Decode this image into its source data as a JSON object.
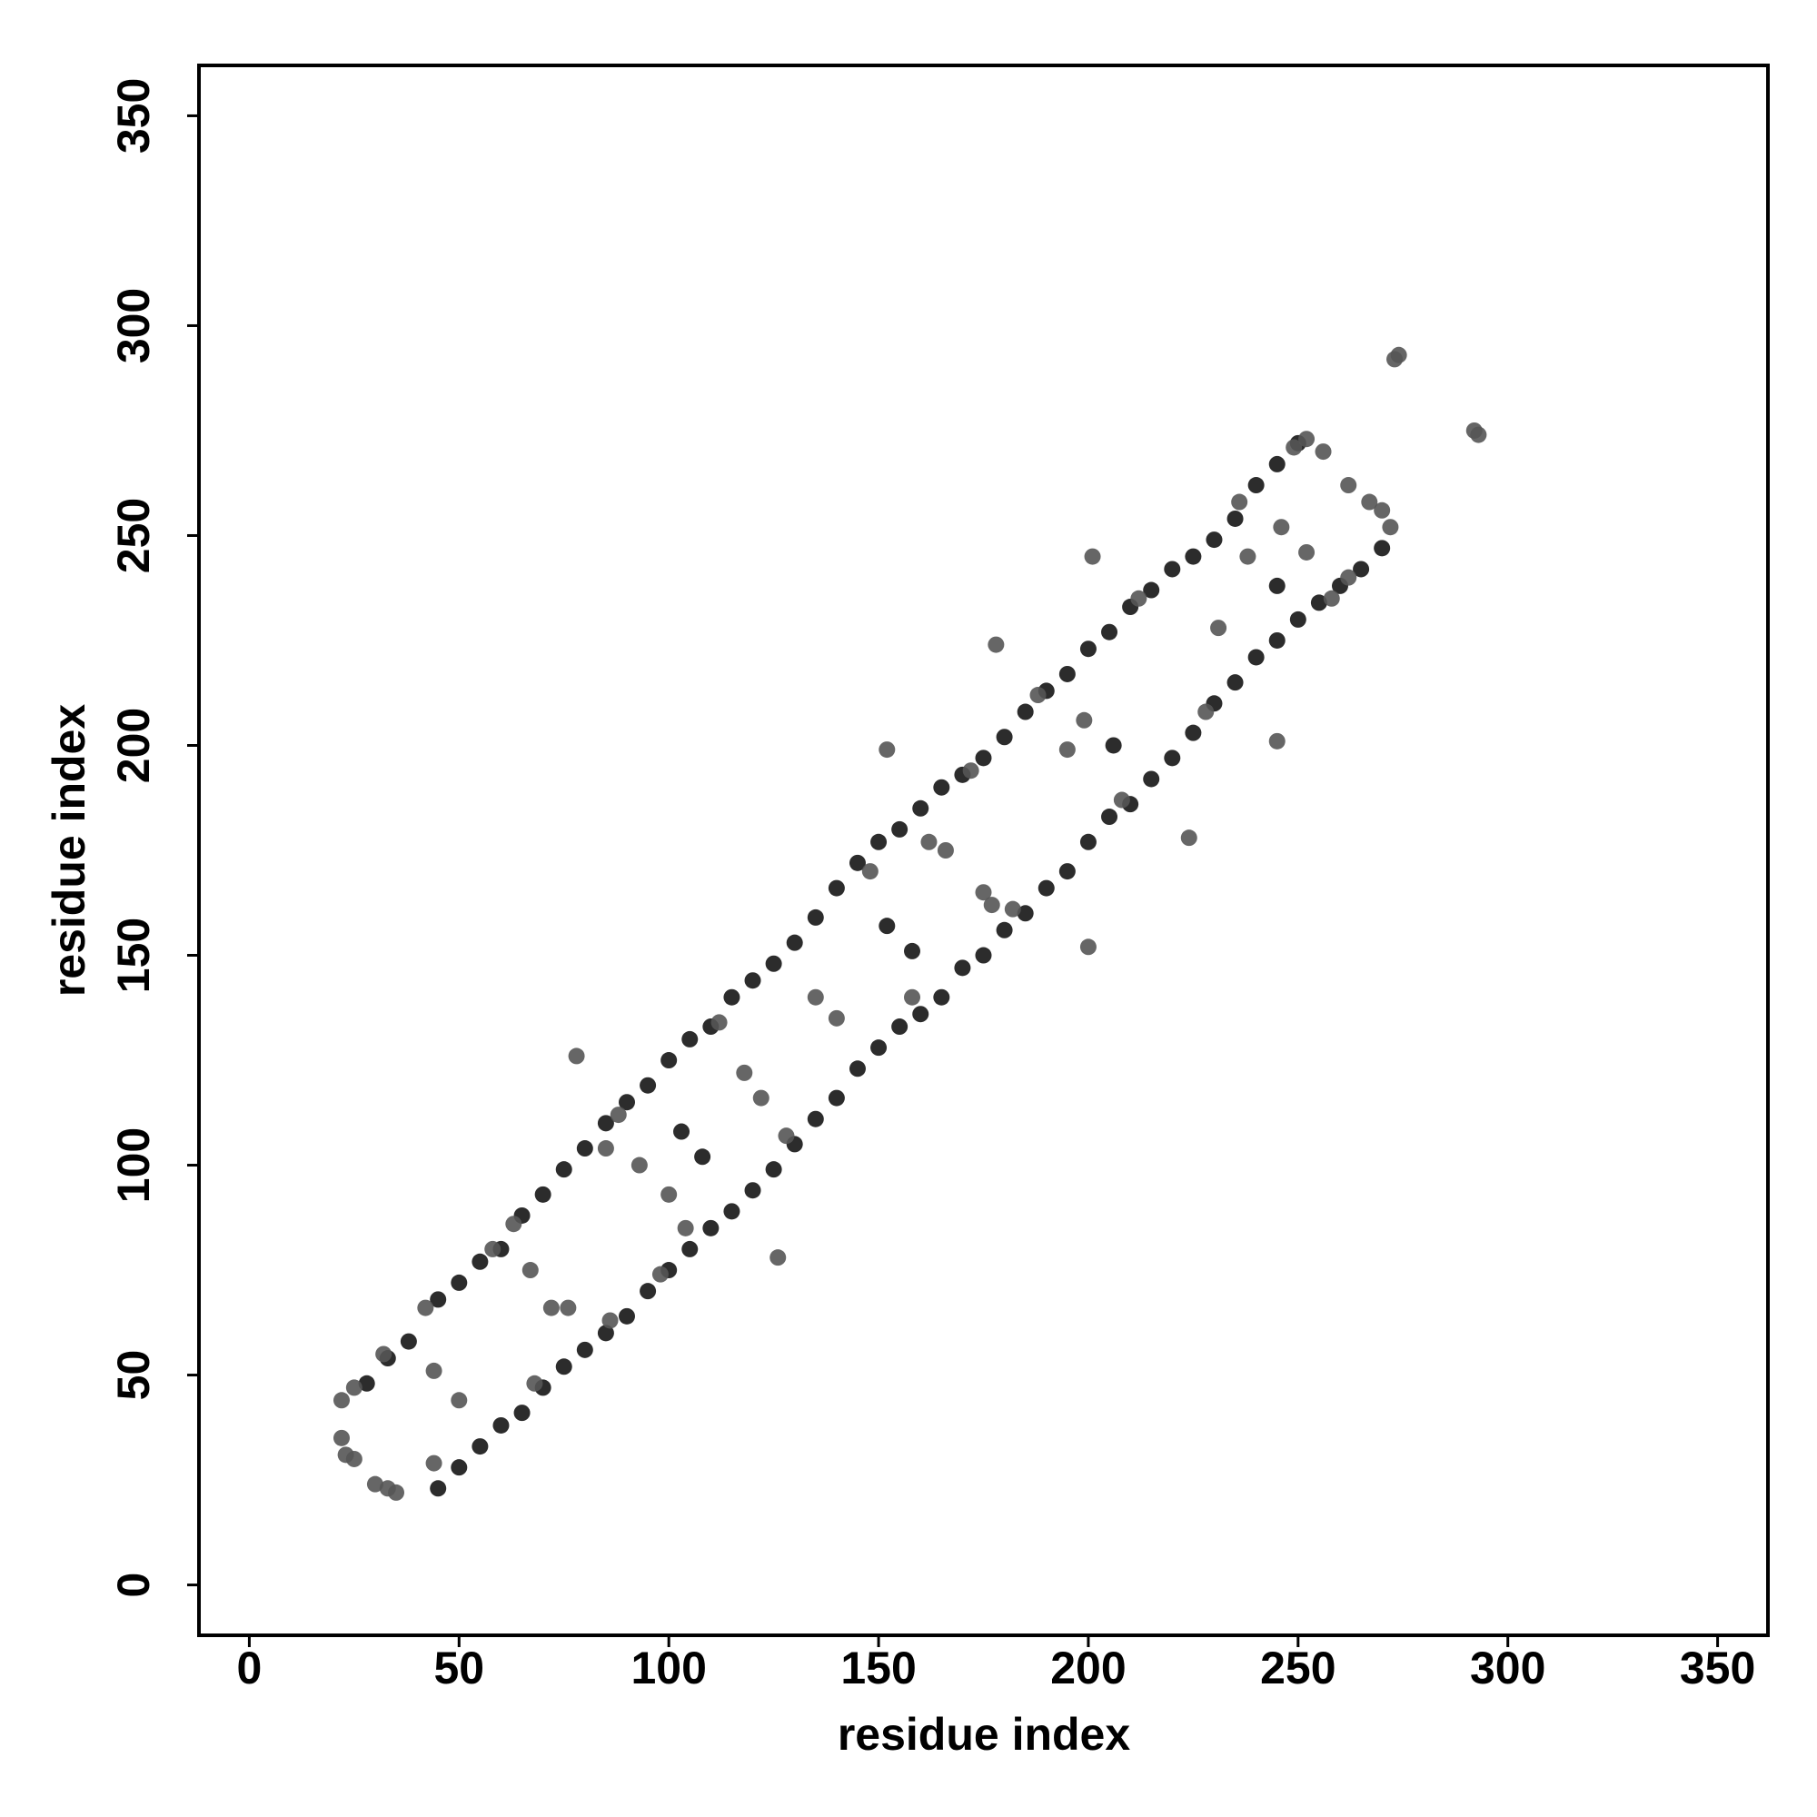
{
  "chart_data": {
    "type": "scatter",
    "xlabel": "residue index",
    "ylabel": "residue index",
    "xlim": [
      -12,
      362
    ],
    "ylim": [
      -12,
      362
    ],
    "xticks": [
      0,
      50,
      100,
      150,
      200,
      250,
      300,
      350
    ],
    "yticks": [
      0,
      50,
      100,
      150,
      200,
      250,
      300,
      350
    ],
    "series": [
      {
        "color": "#151515",
        "x": [
          28,
          33,
          38,
          45,
          50,
          55,
          60,
          65,
          70,
          75,
          80,
          85,
          90,
          95,
          100,
          105,
          110,
          115,
          120,
          125,
          130,
          135,
          140,
          145,
          150,
          155,
          160,
          165,
          170,
          175,
          180,
          185,
          190,
          195,
          200,
          205,
          210,
          215,
          220,
          225,
          230,
          235,
          240,
          245,
          250,
          45,
          50,
          55,
          60,
          65,
          70,
          75,
          80,
          85,
          90,
          95,
          100,
          105,
          110,
          115,
          120,
          125,
          130,
          135,
          140,
          145,
          150,
          155,
          160,
          165,
          170,
          175,
          180,
          185,
          190,
          195,
          200,
          205,
          210,
          215,
          220,
          225,
          230,
          235,
          240,
          245,
          250,
          255,
          260,
          265,
          270,
          103,
          108,
          152,
          158,
          206,
          245
        ],
        "y": [
          48,
          54,
          58,
          68,
          72,
          77,
          80,
          88,
          93,
          99,
          104,
          110,
          115,
          119,
          125,
          130,
          133,
          140,
          144,
          148,
          153,
          159,
          166,
          172,
          177,
          180,
          185,
          190,
          193,
          197,
          202,
          208,
          213,
          217,
          223,
          227,
          233,
          237,
          242,
          245,
          249,
          254,
          262,
          267,
          272,
          23,
          28,
          33,
          38,
          41,
          47,
          52,
          56,
          60,
          64,
          70,
          75,
          80,
          85,
          89,
          94,
          99,
          105,
          111,
          116,
          123,
          128,
          133,
          136,
          140,
          147,
          150,
          156,
          160,
          166,
          170,
          177,
          183,
          186,
          192,
          197,
          203,
          210,
          215,
          221,
          225,
          230,
          234,
          238,
          242,
          247,
          108,
          102,
          157,
          151,
          200,
          238
        ]
      },
      {
        "color": "#555555",
        "x": [
          22,
          23,
          25,
          30,
          33,
          35,
          44,
          22,
          25,
          272,
          270,
          267,
          262,
          256,
          252,
          249,
          274,
          273,
          292,
          293,
          44,
          50,
          67,
          72,
          76,
          78,
          93,
          100,
          122,
          126,
          152,
          166,
          175,
          178,
          200,
          201,
          199,
          224,
          245,
          238,
          246,
          252,
          63,
          86,
          118,
          162,
          177,
          195,
          231,
          85,
          104,
          135,
          140,
          32,
          42,
          58,
          88,
          112,
          148,
          172,
          188,
          212,
          236,
          262,
          68,
          98,
          128,
          158,
          182,
          208,
          228,
          258
        ],
        "y": [
          35,
          31,
          30,
          24,
          23,
          22,
          29,
          44,
          47,
          252,
          256,
          258,
          262,
          270,
          273,
          271,
          293,
          292,
          275,
          274,
          51,
          44,
          75,
          66,
          66,
          126,
          100,
          93,
          116,
          78,
          199,
          175,
          165,
          224,
          152,
          245,
          206,
          178,
          201,
          245,
          252,
          246,
          86,
          63,
          122,
          177,
          162,
          199,
          228,
          104,
          85,
          140,
          135,
          55,
          66,
          80,
          112,
          134,
          170,
          194,
          212,
          235,
          258,
          240,
          48,
          74,
          107,
          140,
          161,
          187,
          208,
          235
        ]
      }
    ]
  }
}
